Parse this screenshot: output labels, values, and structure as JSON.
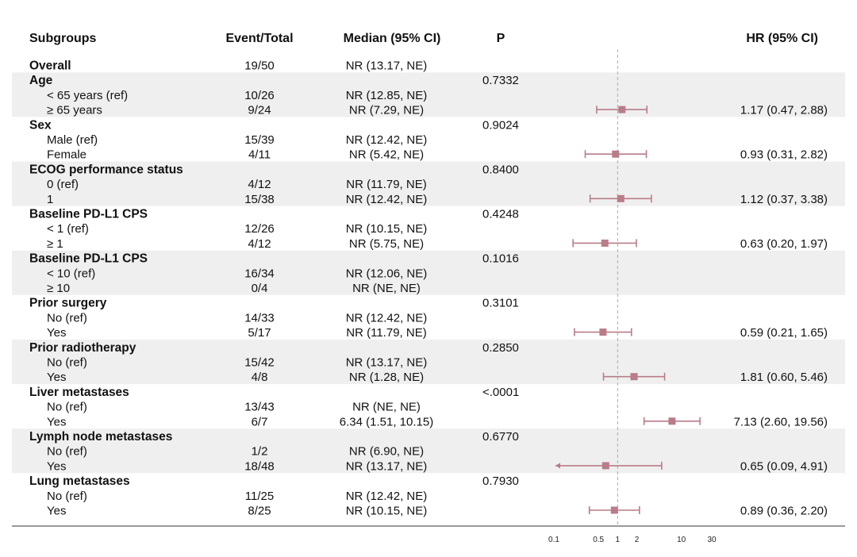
{
  "headers": {
    "subgroups": "Subgroups",
    "event_total": "Event/Total",
    "median": "Median (95% CI)",
    "p": "P",
    "hr": "HR (95% CI)"
  },
  "colors": {
    "marker": "#b97c89",
    "band": "#efefef",
    "reference_line": "#aaaaaa",
    "axis": "#333333"
  },
  "chart_data": {
    "type": "forest",
    "x_scale": "log",
    "reference_value": 1,
    "xlim": [
      0.1,
      30
    ],
    "x_ticks": [
      0.1,
      0.5,
      1,
      2,
      10,
      30
    ],
    "x_tick_labels": [
      "0.1",
      "0.5",
      "1",
      "2",
      "10",
      "30"
    ],
    "rows": [
      {
        "label": "Overall",
        "kind": "group",
        "band": false,
        "event_total": "19/50",
        "median": "NR (13.17, NE)",
        "p": "",
        "hr_text": ""
      },
      {
        "label": "Age",
        "kind": "group",
        "band": true,
        "event_total": "",
        "median": "",
        "p": "0.7332",
        "hr_text": ""
      },
      {
        "label": "< 65 years (ref)",
        "kind": "level",
        "band": true,
        "event_total": "10/26",
        "median": "NR (12.85, NE)",
        "p": "",
        "hr_text": ""
      },
      {
        "label": "≥ 65 years",
        "kind": "level",
        "band": true,
        "event_total": "9/24",
        "median": "NR (7.29, NE)",
        "p": "",
        "hr_text": "1.17 (0.47, 2.88)",
        "hr": 1.17,
        "lower": 0.47,
        "upper": 2.88
      },
      {
        "label": "Sex",
        "kind": "group",
        "band": false,
        "event_total": "",
        "median": "",
        "p": "0.9024",
        "hr_text": ""
      },
      {
        "label": "Male (ref)",
        "kind": "level",
        "band": false,
        "event_total": "15/39",
        "median": "NR (12.42, NE)",
        "p": "",
        "hr_text": ""
      },
      {
        "label": "Female",
        "kind": "level",
        "band": false,
        "event_total": "4/11",
        "median": "NR (5.42, NE)",
        "p": "",
        "hr_text": "0.93 (0.31, 2.82)",
        "hr": 0.93,
        "lower": 0.31,
        "upper": 2.82
      },
      {
        "label": "ECOG performance status",
        "kind": "group",
        "band": true,
        "event_total": "",
        "median": "",
        "p": "0.8400",
        "hr_text": ""
      },
      {
        "label": "0 (ref)",
        "kind": "level",
        "band": true,
        "event_total": "4/12",
        "median": "NR (11.79, NE)",
        "p": "",
        "hr_text": ""
      },
      {
        "label": "1",
        "kind": "level",
        "band": true,
        "event_total": "15/38",
        "median": "NR (12.42, NE)",
        "p": "",
        "hr_text": "1.12 (0.37, 3.38)",
        "hr": 1.12,
        "lower": 0.37,
        "upper": 3.38
      },
      {
        "label": "Baseline PD-L1 CPS",
        "kind": "group",
        "band": false,
        "event_total": "",
        "median": "",
        "p": "0.4248",
        "hr_text": ""
      },
      {
        "label": "< 1 (ref)",
        "kind": "level",
        "band": false,
        "event_total": "12/26",
        "median": "NR (10.15, NE)",
        "p": "",
        "hr_text": ""
      },
      {
        "label": "≥ 1",
        "kind": "level",
        "band": false,
        "event_total": "4/12",
        "median": "NR (5.75, NE)",
        "p": "",
        "hr_text": "0.63 (0.20, 1.97)",
        "hr": 0.63,
        "lower": 0.2,
        "upper": 1.97
      },
      {
        "label": "Baseline PD-L1 CPS",
        "kind": "group",
        "band": true,
        "event_total": "",
        "median": "",
        "p": "0.1016",
        "hr_text": ""
      },
      {
        "label": "< 10 (ref)",
        "kind": "level",
        "band": true,
        "event_total": "16/34",
        "median": "NR (12.06, NE)",
        "p": "",
        "hr_text": ""
      },
      {
        "label": "≥ 10",
        "kind": "level",
        "band": true,
        "event_total": "0/4",
        "median": "NR (NE, NE)",
        "p": "",
        "hr_text": ""
      },
      {
        "label": "Prior surgery",
        "kind": "group",
        "band": false,
        "event_total": "",
        "median": "",
        "p": "0.3101",
        "hr_text": ""
      },
      {
        "label": "No (ref)",
        "kind": "level",
        "band": false,
        "event_total": "14/33",
        "median": "NR (12.42, NE)",
        "p": "",
        "hr_text": ""
      },
      {
        "label": "Yes",
        "kind": "level",
        "band": false,
        "event_total": "5/17",
        "median": "NR (11.79, NE)",
        "p": "",
        "hr_text": "0.59 (0.21, 1.65)",
        "hr": 0.59,
        "lower": 0.21,
        "upper": 1.65
      },
      {
        "label": "Prior radiotherapy",
        "kind": "group",
        "band": true,
        "event_total": "",
        "median": "",
        "p": "0.2850",
        "hr_text": ""
      },
      {
        "label": "No (ref)",
        "kind": "level",
        "band": true,
        "event_total": "15/42",
        "median": "NR (13.17, NE)",
        "p": "",
        "hr_text": ""
      },
      {
        "label": "Yes",
        "kind": "level",
        "band": true,
        "event_total": "4/8",
        "median": "NR (1.28, NE)",
        "p": "",
        "hr_text": "1.81 (0.60, 5.46)",
        "hr": 1.81,
        "lower": 0.6,
        "upper": 5.46
      },
      {
        "label": "Liver metastases",
        "kind": "group",
        "band": false,
        "event_total": "",
        "median": "",
        "p": "<.0001",
        "hr_text": ""
      },
      {
        "label": "No (ref)",
        "kind": "level",
        "band": false,
        "event_total": "13/43",
        "median": "NR (NE, NE)",
        "p": "",
        "hr_text": ""
      },
      {
        "label": "Yes",
        "kind": "level",
        "band": false,
        "event_total": "6/7",
        "median": "6.34 (1.51, 10.15)",
        "p": "",
        "hr_text": "7.13 (2.60, 19.56)",
        "hr": 7.13,
        "lower": 2.6,
        "upper": 19.56
      },
      {
        "label": "Lymph node metastases",
        "kind": "group",
        "band": true,
        "event_total": "",
        "median": "",
        "p": "0.6770",
        "hr_text": ""
      },
      {
        "label": "No (ref)",
        "kind": "level",
        "band": true,
        "event_total": "1/2",
        "median": "NR (6.90, NE)",
        "p": "",
        "hr_text": ""
      },
      {
        "label": "Yes",
        "kind": "level",
        "band": true,
        "event_total": "18/48",
        "median": "NR (13.17, NE)",
        "p": "",
        "hr_text": "0.65 (0.09, 4.91)",
        "hr": 0.65,
        "lower": 0.09,
        "upper": 4.91,
        "lower_arrow": true
      },
      {
        "label": "Lung metastases",
        "kind": "group",
        "band": false,
        "event_total": "",
        "median": "",
        "p": "0.7930",
        "hr_text": ""
      },
      {
        "label": "No (ref)",
        "kind": "level",
        "band": false,
        "event_total": "11/25",
        "median": "NR (12.42, NE)",
        "p": "",
        "hr_text": ""
      },
      {
        "label": "Yes",
        "kind": "level",
        "band": false,
        "event_total": "8/25",
        "median": "NR (10.15, NE)",
        "p": "",
        "hr_text": "0.89 (0.36, 2.20)",
        "hr": 0.89,
        "lower": 0.36,
        "upper": 2.2
      }
    ]
  }
}
